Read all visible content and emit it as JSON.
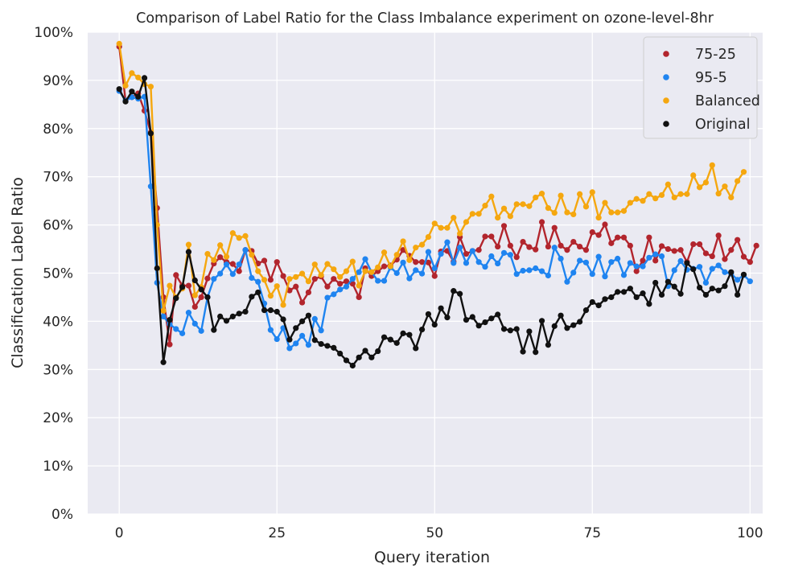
{
  "chart_data": {
    "type": "line",
    "title": "Comparison of Label Ratio for the Class Imbalance experiment on ozone-level-8hr",
    "xlabel": "Query iteration",
    "ylabel": "Classification Label Ratio",
    "xlim": [
      -5,
      102
    ],
    "ylim": [
      0,
      100
    ],
    "xticks": [
      0,
      25,
      50,
      75,
      100
    ],
    "yticks": [
      0,
      10,
      20,
      30,
      40,
      50,
      60,
      70,
      80,
      90,
      100
    ],
    "ytick_labels": [
      "0%",
      "10%",
      "20%",
      "30%",
      "40%",
      "50%",
      "60%",
      "70%",
      "80%",
      "90%",
      "100%"
    ],
    "grid": true,
    "legend_position": "top-right",
    "series": [
      {
        "name": "75-25",
        "color": "#b2252d",
        "values": [
          97.0,
          85.8,
          86.5,
          87.3,
          83.7,
          79.2,
          63.5,
          45.0,
          35.2,
          49.6,
          47.4,
          47.4,
          43.0,
          45.0,
          48.9,
          52.0,
          53.3,
          52.3,
          51.9,
          50.4,
          54.8,
          54.6,
          52.0,
          52.6,
          48.6,
          52.3,
          49.4,
          46.4,
          47.2,
          43.9,
          46.0,
          48.8,
          49.3,
          47.2,
          48.8,
          47.8,
          48.3,
          47.8,
          45.0,
          51.0,
          49.4,
          50.4,
          51.4,
          51.6,
          52.8,
          54.8,
          53.6,
          52.3,
          52.3,
          52.2,
          49.4,
          54.5,
          54.6,
          52.4,
          57.5,
          54.0,
          54.6,
          54.8,
          57.6,
          57.6,
          55.5,
          59.8,
          55.7,
          53.3,
          56.5,
          55.4,
          54.9,
          60.6,
          55.5,
          59.4,
          55.7,
          54.8,
          56.5,
          55.5,
          54.8,
          58.5,
          57.9,
          60.1,
          56.2,
          57.4,
          57.4,
          55.7,
          50.4,
          52.6,
          57.4,
          52.6,
          55.6,
          55.0,
          54.6,
          54.8,
          52.3,
          56.0,
          56.0,
          54.1,
          53.5,
          57.8,
          52.9,
          54.8,
          56.9,
          53.4,
          52.3,
          55.7
        ]
      },
      {
        "name": "95-5",
        "color": "#1f84f0",
        "values": [
          87.8,
          85.8,
          86.5,
          86.2,
          86.6,
          68.0,
          48.0,
          41.0,
          39.4,
          38.4,
          37.5,
          41.8,
          39.5,
          38.0,
          45.0,
          48.8,
          49.9,
          51.8,
          49.8,
          51.8,
          54.8,
          49.0,
          48.2,
          43.7,
          38.2,
          36.3,
          38.6,
          34.4,
          35.4,
          37.0,
          35.1,
          40.5,
          38.1,
          44.9,
          45.6,
          46.6,
          47.2,
          48.8,
          50.2,
          52.9,
          50.2,
          48.4,
          48.4,
          51.2,
          50.0,
          52.2,
          48.9,
          50.6,
          49.9,
          54.4,
          51.0,
          54.0,
          56.4,
          52.1,
          55.3,
          52.1,
          54.6,
          52.3,
          51.3,
          53.5,
          52.0,
          54.2,
          53.8,
          49.8,
          50.5,
          50.6,
          51.0,
          50.4,
          49.5,
          55.3,
          53.0,
          48.2,
          50.1,
          52.6,
          52.2,
          49.8,
          53.4,
          49.3,
          52.3,
          53.0,
          49.6,
          52.1,
          51.4,
          51.4,
          53.2,
          53.9,
          53.5,
          47.3,
          50.6,
          52.5,
          50.7,
          50.9,
          51.3,
          48.0,
          50.9,
          51.6,
          50.2,
          49.9,
          48.6,
          49.6,
          48.3
        ]
      },
      {
        "name": "Balanced",
        "color": "#f5a70f",
        "values": [
          97.6,
          88.9,
          91.5,
          90.6,
          89.2,
          88.7,
          60.0,
          42.2,
          47.4,
          45.0,
          46.8,
          55.9,
          45.4,
          47.1,
          54.0,
          52.7,
          55.8,
          53.4,
          58.3,
          57.3,
          57.7,
          53.8,
          50.4,
          48.6,
          45.3,
          47.3,
          43.4,
          48.8,
          49.2,
          49.9,
          48.3,
          51.8,
          49.6,
          51.9,
          50.8,
          49.2,
          50.4,
          52.4,
          47.4,
          50.4,
          50.2,
          51.2,
          54.3,
          51.4,
          53.8,
          56.6,
          52.7,
          55.3,
          55.9,
          57.5,
          60.3,
          59.4,
          59.4,
          61.5,
          58.2,
          60.6,
          62.3,
          62.3,
          64.0,
          65.9,
          61.5,
          63.4,
          61.8,
          64.3,
          64.3,
          63.9,
          65.7,
          66.5,
          63.5,
          62.5,
          66.1,
          62.6,
          62.2,
          66.4,
          63.8,
          66.8,
          61.5,
          64.6,
          62.6,
          62.6,
          62.9,
          64.6,
          65.4,
          65.0,
          66.4,
          65.5,
          66.2,
          68.4,
          65.7,
          66.4,
          66.4,
          70.3,
          67.8,
          68.8,
          72.4,
          66.5,
          68.0,
          65.7,
          69.1,
          71.0
        ]
      },
      {
        "name": "Original",
        "color": "#111111",
        "values": [
          88.2,
          85.6,
          87.7,
          86.6,
          90.5,
          79.0,
          51.0,
          31.5,
          40.3,
          44.8,
          47.1,
          54.4,
          48.5,
          46.6,
          45.0,
          38.2,
          41.0,
          40.1,
          41.0,
          41.6,
          42.0,
          45.1,
          46.0,
          42.3,
          42.3,
          42.0,
          40.4,
          36.2,
          38.6,
          40.0,
          41.2,
          36.1,
          35.3,
          34.9,
          34.5,
          33.3,
          31.9,
          30.8,
          32.5,
          33.9,
          32.5,
          33.8,
          36.7,
          36.2,
          35.5,
          37.5,
          37.2,
          34.4,
          38.3,
          41.5,
          39.3,
          42.7,
          40.8,
          46.3,
          45.7,
          40.3,
          40.9,
          39.1,
          39.8,
          40.6,
          41.4,
          38.4,
          38.1,
          38.4,
          33.7,
          37.9,
          33.6,
          40.1,
          35.1,
          39.0,
          41.2,
          38.6,
          39.2,
          39.9,
          42.3,
          44.0,
          43.3,
          44.6,
          45.0,
          46.1,
          46.1,
          46.8,
          45.0,
          45.8,
          43.6,
          48.0,
          45.5,
          48.2,
          47.2,
          45.7,
          52.1,
          50.8,
          47.0,
          45.5,
          46.8,
          46.4,
          47.3,
          50.2,
          45.5,
          49.7
        ]
      }
    ]
  }
}
